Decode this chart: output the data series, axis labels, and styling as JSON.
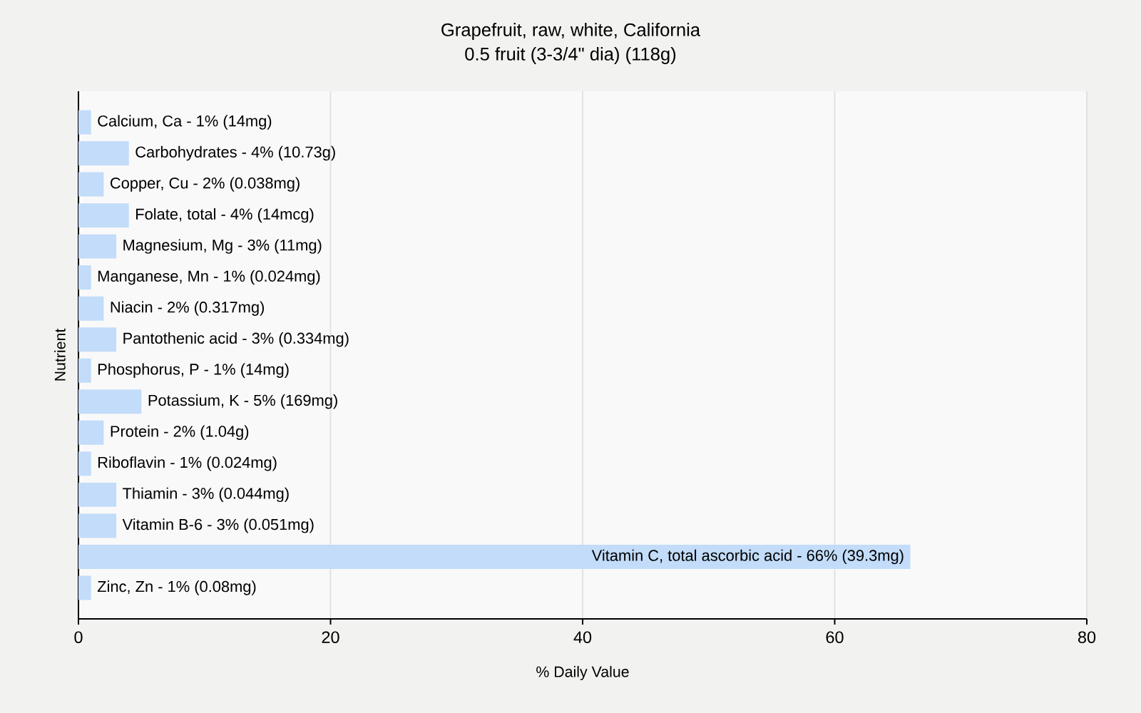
{
  "chart_data": {
    "type": "bar",
    "orientation": "horizontal",
    "title": "Grapefruit, raw, white, California",
    "subtitle": "0.5 fruit (3-3/4\" dia) (118g)",
    "xlabel": "% Daily Value",
    "ylabel": "Nutrient",
    "categories": [
      null,
      null,
      null,
      null,
      null,
      null,
      null,
      null,
      null,
      null,
      null,
      null,
      null,
      null,
      null,
      null
    ],
    "values": [
      1,
      4,
      2,
      4,
      3,
      1,
      2,
      3,
      1,
      5,
      2,
      1,
      3,
      3,
      66,
      1
    ],
    "annotations": [
      {
        "text": "Calcium, Ca - 1% (14mg)",
        "x": 1
      },
      {
        "text": "Carbohydrates - 4% (10.73g)",
        "x": 4
      },
      {
        "text": "Copper, Cu - 2% (0.038mg)",
        "x": 2
      },
      {
        "text": "Folate, total - 4% (14mcg)",
        "x": 4
      },
      {
        "text": "Magnesium, Mg - 3% (11mg)",
        "x": 3
      },
      {
        "text": "Manganese, Mn - 1% (0.024mg)",
        "x": 1
      },
      {
        "text": "Niacin - 2% (0.317mg)",
        "x": 2
      },
      {
        "text": "Pantothenic acid - 3% (0.334mg)",
        "x": 3
      },
      {
        "text": "Phosphorus, P - 1% (14mg)",
        "x": 1
      },
      {
        "text": "Potassium, K - 5% (169mg)",
        "x": 5
      },
      {
        "text": "Protein - 2% (1.04g)",
        "x": 2
      },
      {
        "text": "Riboflavin - 1% (0.024mg)",
        "x": 1
      },
      {
        "text": "Thiamin - 3% (0.044mg)",
        "x": 3
      },
      {
        "text": "Vitamin B-6 - 3% (0.051mg)",
        "x": 3
      },
      {
        "text": "Vitamin C, total ascorbic acid - 66% (39.3mg)",
        "x": 66
      },
      {
        "text": "Zinc, Zn - 1% (0.08mg)",
        "x": 1
      }
    ],
    "color": "#c2dcf9",
    "xlim": [
      0,
      80
    ],
    "xticks": [
      0,
      20,
      40,
      60,
      80
    ],
    "grid": "x",
    "tick_labels": "x"
  }
}
